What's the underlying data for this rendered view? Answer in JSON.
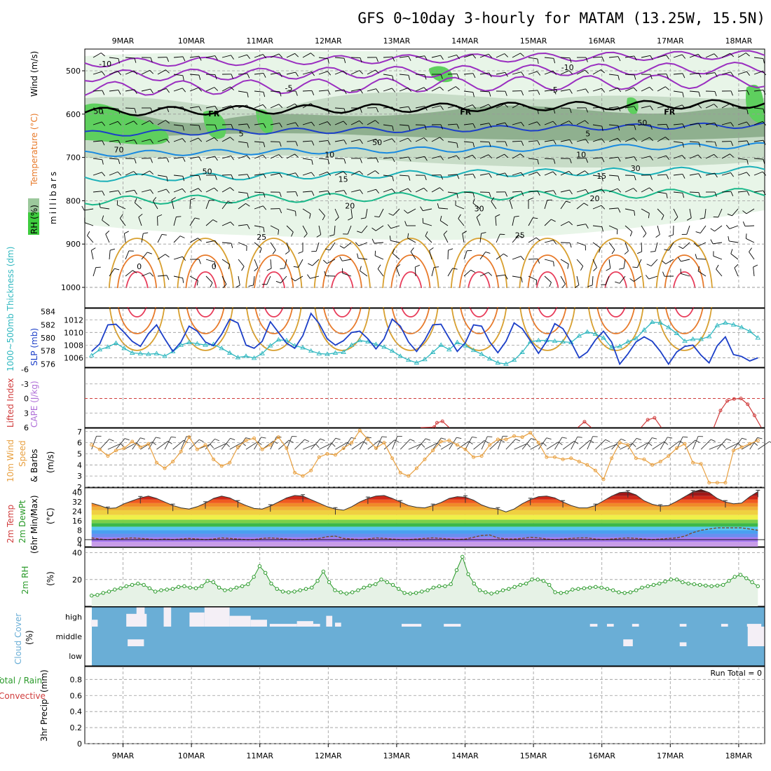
{
  "title": "GFS 0~10day 3-hourly for MATAM (13.25W, 15.5N)",
  "days": [
    "9MAR",
    "10MAR",
    "11MAR",
    "12MAR",
    "13MAR",
    "14MAR",
    "15MAR",
    "16MAR",
    "17MAR",
    "18MAR"
  ],
  "colors": {
    "rh_light": "#e8f5e8",
    "rh_mid": "#c7dcc7",
    "rh_dark": "#8fb08f",
    "rh_green": "#5ecf5e",
    "cloud": "#6aaed6",
    "clear": "#f4eff6",
    "slp": "#1c3fc8",
    "thick": "#30b8c0",
    "wind10": "#e8a040",
    "rh2m": "#2a9a2a",
    "cape": "#d03c3c"
  },
  "chart_data": [
    {
      "name": "upper_air",
      "type": "contour",
      "ylabel": "millibars",
      "yticks": [
        500,
        600,
        700,
        800,
        900,
        1000
      ],
      "side_labels": {
        "wind": "Wind (m/s)",
        "temperature": "Temperature (°C)",
        "rh": "RH (%)"
      },
      "isotherm_labels": [
        {
          "text": "-10",
          "x": 0.03,
          "p": 482
        },
        {
          "text": "-10",
          "x": 0.71,
          "p": 490
        },
        {
          "text": "-5",
          "x": 0.3,
          "p": 538
        },
        {
          "text": "-5",
          "x": 0.69,
          "p": 542
        },
        {
          "text": "FR",
          "x": 0.19,
          "p": 597
        },
        {
          "text": "FR",
          "x": 0.56,
          "p": 593
        },
        {
          "text": "FR",
          "x": 0.86,
          "p": 593
        },
        {
          "text": "5",
          "x": 0.23,
          "p": 643
        },
        {
          "text": "5",
          "x": 0.74,
          "p": 643
        },
        {
          "text": "10",
          "x": 0.36,
          "p": 692
        },
        {
          "text": "10",
          "x": 0.73,
          "p": 692
        },
        {
          "text": "15",
          "x": 0.38,
          "p": 748
        },
        {
          "text": "15",
          "x": 0.76,
          "p": 741
        },
        {
          "text": "20",
          "x": 0.39,
          "p": 810
        },
        {
          "text": "20",
          "x": 0.75,
          "p": 793
        },
        {
          "text": "25",
          "x": 0.26,
          "p": 882
        },
        {
          "text": "25",
          "x": 0.64,
          "p": 878
        },
        {
          "text": "0",
          "x": 0.08,
          "p": 950
        },
        {
          "text": "0",
          "x": 0.19,
          "p": 950
        }
      ],
      "rh_labels": [
        {
          "text": "50",
          "x": 0.02,
          "p": 593
        },
        {
          "text": "70",
          "x": 0.05,
          "p": 682
        },
        {
          "text": "50",
          "x": 0.18,
          "p": 732
        },
        {
          "text": "50",
          "x": 0.43,
          "p": 665
        },
        {
          "text": "50",
          "x": 0.82,
          "p": 620
        },
        {
          "text": "30",
          "x": 0.81,
          "p": 725
        },
        {
          "text": "30",
          "x": 0.58,
          "p": 818
        }
      ]
    },
    {
      "name": "slp_thickness",
      "type": "line",
      "ylabel_left": "1000~500mb Thickness (dm)",
      "ylabel_right": "SLP (mb)",
      "thickness_ticks": [
        576,
        578,
        580,
        582,
        584
      ],
      "slp_ticks": [
        1006,
        1008,
        1010,
        1012
      ],
      "thickness_ylim": [
        575.5,
        584.5
      ],
      "slp_ylim": [
        1004.5,
        1013.8
      ],
      "slp": [
        1007.0,
        1008.2,
        1011.2,
        1011.3,
        1010.0,
        1008.6,
        1007.8,
        1009.8,
        1011.2,
        1009.0,
        1007.0,
        1008.5,
        1011.0,
        1010.2,
        1008.5,
        1007.9,
        1009.7,
        1012.1,
        1011.5,
        1008.0,
        1007.5,
        1008.6,
        1011.7,
        1010.0,
        1008.3,
        1007.5,
        1009.5,
        1013.0,
        1011.4,
        1009.0,
        1008.0,
        1008.7,
        1010.0,
        1010.2,
        1009.0,
        1007.4,
        1009.0,
        1012.1,
        1011.0,
        1008.5,
        1007.0,
        1008.8,
        1011.2,
        1011.3,
        1009.1,
        1007.0,
        1008.4,
        1011.2,
        1011.0,
        1008.5,
        1006.8,
        1008.6,
        1011.5,
        1010.6,
        1008.7,
        1006.7,
        1008.6,
        1011.4,
        1010.6,
        1008.5,
        1006.0,
        1006.9,
        1008.8,
        1010.2,
        1008.5,
        1005.0,
        1006.6,
        1008.5,
        1009.3,
        1008.6,
        1007.0,
        1005.0,
        1006.9,
        1007.8,
        1008.0,
        1006.4,
        1005.2,
        1007.9,
        1009.3,
        1006.5,
        1006.2,
        1005.5,
        1006.0
      ],
      "thickness": [
        577.3,
        578.2,
        578.6,
        579.2,
        578.4,
        577.7,
        577.6,
        577.5,
        577.6,
        577.2,
        577.9,
        578.9,
        579.3,
        579.1,
        578.9,
        579.0,
        578.4,
        577.7,
        577.0,
        577.2,
        576.9,
        577.6,
        578.8,
        579.7,
        579.6,
        578.8,
        578.5,
        578.0,
        577.6,
        577.5,
        577.7,
        577.8,
        578.9,
        579.6,
        579.4,
        579.0,
        578.6,
        578.0,
        577.2,
        576.6,
        576.2,
        576.7,
        577.8,
        578.9,
        578.2,
        579.3,
        578.8,
        578.1,
        577.5,
        576.8,
        576.2,
        576.0,
        576.6,
        577.8,
        579.4,
        579.6,
        579.6,
        579.5,
        579.4,
        579.3,
        580.3,
        580.9,
        580.6,
        580.0,
        578.5,
        578.7,
        579.4,
        579.9,
        581.2,
        582.4,
        582.3,
        581.6,
        580.7,
        579.5,
        579.8,
        579.8,
        580.2,
        581.9,
        582.3,
        582.0,
        581.6,
        581.0,
        580.0
      ]
    },
    {
      "name": "cape_li",
      "type": "line",
      "ylabel_left": "Lifted Index",
      "ylabel_right": "CAPE (J/kg)",
      "li_ticks": [
        6,
        3,
        0,
        -3,
        -6
      ],
      "li_ylim": [
        6,
        -6
      ],
      "lifted_index": [
        {
          "x": 0.494,
          "y": 6.0
        },
        {
          "x": 0.514,
          "y": 5.9
        },
        {
          "x": 0.518,
          "y": 5.0
        },
        {
          "x": 0.526,
          "y": 4.7
        },
        {
          "x": 0.536,
          "y": 6.0
        },
        {
          "x": 0.725,
          "y": 6.0
        },
        {
          "x": 0.735,
          "y": 4.8
        },
        {
          "x": 0.745,
          "y": 6.0
        },
        {
          "x": 0.818,
          "y": 6.0
        },
        {
          "x": 0.828,
          "y": 4.4
        },
        {
          "x": 0.838,
          "y": 4.0
        },
        {
          "x": 0.848,
          "y": 6.0
        },
        {
          "x": 0.925,
          "y": 6.0
        },
        {
          "x": 0.935,
          "y": 2.5
        },
        {
          "x": 0.945,
          "y": 0.5
        },
        {
          "x": 0.955,
          "y": 0.1
        },
        {
          "x": 0.965,
          "y": 0.0
        },
        {
          "x": 0.975,
          "y": 1.2
        },
        {
          "x": 0.985,
          "y": 3.5
        },
        {
          "x": 0.995,
          "y": 6.0
        }
      ]
    },
    {
      "name": "wind10m",
      "type": "line",
      "ylabel": "10m Wind Speed & Barbs (m/s)",
      "yticks": [
        2,
        3,
        4,
        5,
        6,
        7
      ],
      "ylim": [
        2,
        7.3
      ],
      "speed": [
        5.8,
        5.4,
        4.8,
        5.3,
        5.5,
        6.1,
        5.6,
        5.9,
        4.2,
        3.7,
        4.3,
        5.2,
        6.5,
        5.4,
        5.8,
        4.5,
        3.9,
        4.2,
        5.6,
        6.2,
        6.4,
        5.4,
        5.8,
        6.5,
        5.5,
        3.3,
        3.0,
        3.5,
        4.7,
        5.0,
        4.9,
        5.5,
        6.0,
        7.1,
        6.3,
        5.5,
        6.0,
        4.6,
        3.3,
        3.0,
        3.7,
        4.5,
        5.3,
        6.1,
        6.2,
        5.8,
        5.4,
        4.7,
        4.8,
        5.8,
        6.3,
        6.3,
        6.6,
        6.5,
        6.9,
        6.0,
        4.7,
        4.7,
        4.5,
        4.6,
        4.3,
        4.0,
        3.5,
        2.7,
        4.6,
        6.0,
        5.8,
        4.6,
        4.5,
        4.0,
        4.3,
        4.8,
        5.5,
        5.9,
        4.2,
        4.1,
        2.4,
        2.4,
        2.4,
        5.3,
        5.6,
        5.9,
        6.2
      ]
    },
    {
      "name": "temp2m",
      "type": "area",
      "ylabel": "2m Temp 2m DewPt (6hr Min/Max) (°C)",
      "yticks": [
        -4,
        0,
        8,
        16,
        24,
        32,
        40
      ],
      "ylim": [
        -6,
        44
      ],
      "temperature": [
        31,
        29,
        26.5,
        27,
        30.5,
        33,
        35.5,
        37,
        35,
        32,
        29,
        27,
        26,
        28,
        31,
        35,
        37,
        35.5,
        32,
        29,
        26.5,
        26,
        28.5,
        32,
        35.5,
        37.5,
        37,
        34,
        31,
        28,
        26,
        25,
        28,
        32,
        35,
        37,
        37.5,
        35,
        32,
        29,
        27.5,
        27,
        29,
        31.5,
        35,
        36.5,
        36,
        33.5,
        29.5,
        27,
        26,
        23.5,
        26,
        30.5,
        34,
        36.5,
        37,
        35.5,
        32,
        29,
        27,
        27,
        29,
        33,
        37,
        40,
        40.5,
        38,
        33,
        30,
        28.5,
        29,
        32.5,
        36.5,
        40.5,
        42.5,
        40,
        35,
        32,
        30.5,
        31,
        36.5,
        40.8
      ],
      "dewpoint": [
        1.5,
        0.5,
        0,
        0.5,
        1,
        1.5,
        1,
        0.5,
        0,
        0.5,
        0,
        0.5,
        1,
        0.5,
        0,
        0.5,
        1.5,
        1,
        0.5,
        0,
        0,
        1,
        1.5,
        1,
        0.5,
        0,
        0,
        0.5,
        1,
        2.5,
        3,
        1,
        0.5,
        0,
        0.5,
        1.5,
        1,
        0.5,
        0,
        0,
        0.5,
        1,
        1.5,
        1,
        0.5,
        0,
        0.5,
        2,
        3.5,
        4,
        1.5,
        0.5,
        0.5,
        1,
        2,
        1.5,
        0.5,
        0,
        0.5,
        1,
        1.5,
        1.5,
        0.5,
        0,
        0.5,
        1,
        1.5,
        1,
        0.5,
        0,
        0.5,
        1,
        1.5,
        3,
        6,
        8,
        9,
        10,
        10,
        10,
        10,
        9,
        8
      ]
    },
    {
      "name": "rh2m",
      "type": "area",
      "ylabel": "2m RH (%)",
      "yticks": [
        20,
        40
      ],
      "ylim": [
        0,
        44
      ],
      "values": [
        8,
        8.5,
        10,
        11,
        12.5,
        13.5,
        15,
        16,
        17,
        16,
        13.5,
        11,
        12,
        12.5,
        13,
        14.5,
        15,
        14,
        13.5,
        15,
        19,
        18,
        14,
        12,
        12.5,
        14,
        15,
        16.5,
        22,
        30,
        25,
        17,
        13,
        11,
        10.5,
        11,
        12,
        13,
        14,
        19,
        26,
        18,
        12,
        10.5,
        9.5,
        10.5,
        12,
        14,
        15.5,
        16.5,
        20,
        18,
        16,
        13,
        10,
        9.5,
        10,
        11,
        12,
        14,
        15,
        15,
        16.5,
        27,
        37,
        24,
        17,
        12,
        10.5,
        9.5,
        10.5,
        12,
        13,
        14.5,
        16,
        17,
        20,
        20,
        19,
        16,
        10.5,
        10,
        10.5,
        12.5,
        13,
        13.5,
        14,
        14.5,
        14,
        13,
        12,
        10.5,
        10,
        10.5,
        12,
        14,
        15,
        16,
        17,
        18.5,
        20,
        20,
        18,
        17,
        16.5,
        16,
        15.5,
        15,
        15.5,
        16,
        19,
        22,
        23.5,
        21,
        18,
        15
      ]
    },
    {
      "name": "cloud_cover",
      "type": "heatmap",
      "ylabel": "Cloud Cover (%)",
      "levels": [
        "high",
        "middle",
        "low"
      ],
      "clear_segments": [
        {
          "x0": 0.009,
          "x1": 0.019,
          "level": "high",
          "frac": 0.35
        },
        {
          "x0": 0.061,
          "x1": 0.091,
          "level": "high",
          "frac": 0.65
        },
        {
          "x0": 0.076,
          "x1": 0.088,
          "level": "high",
          "frac": 1.0
        },
        {
          "x0": 0.116,
          "x1": 0.127,
          "level": "high",
          "frac": 1.0
        },
        {
          "x0": 0.154,
          "x1": 0.176,
          "level": "high",
          "frac": 0.72
        },
        {
          "x0": 0.176,
          "x1": 0.213,
          "level": "high",
          "frac": 1.0
        },
        {
          "x0": 0.213,
          "x1": 0.244,
          "level": "high",
          "frac": 0.55
        },
        {
          "x0": 0.244,
          "x1": 0.268,
          "level": "high",
          "frac": 0.35
        },
        {
          "x0": 0.272,
          "x1": 0.312,
          "level": "high",
          "frac": 0.14
        },
        {
          "x0": 0.312,
          "x1": 0.336,
          "level": "high",
          "frac": 0.28
        },
        {
          "x0": 0.336,
          "x1": 0.346,
          "level": "high",
          "frac": 0.14
        },
        {
          "x0": 0.355,
          "x1": 0.364,
          "level": "high",
          "frac": 0.55
        },
        {
          "x0": 0.368,
          "x1": 0.377,
          "level": "high",
          "frac": 0.2
        },
        {
          "x0": 0.466,
          "x1": 0.495,
          "level": "high",
          "frac": 0.14
        },
        {
          "x0": 0.528,
          "x1": 0.553,
          "level": "high",
          "frac": 0.14
        },
        {
          "x0": 0.743,
          "x1": 0.754,
          "level": "high",
          "frac": 0.14
        },
        {
          "x0": 0.768,
          "x1": 0.778,
          "level": "high",
          "frac": 0.14
        },
        {
          "x0": 0.805,
          "x1": 0.815,
          "level": "high",
          "frac": 0.14
        },
        {
          "x0": 0.875,
          "x1": 0.885,
          "level": "high",
          "frac": 0.14
        },
        {
          "x0": 0.936,
          "x1": 0.946,
          "level": "high",
          "frac": 0.14
        },
        {
          "x0": 0.974,
          "x1": 0.995,
          "level": "high",
          "frac": 0.14
        },
        {
          "x0": 0.063,
          "x1": 0.087,
          "level": "middle",
          "frac": 0.35
        },
        {
          "x0": 0.792,
          "x1": 0.806,
          "level": "middle",
          "frac": 0.35
        },
        {
          "x0": 0.875,
          "x1": 0.885,
          "level": "middle",
          "frac": 0.2
        },
        {
          "x0": 0.975,
          "x1": 1.0,
          "level": "middle",
          "frac": 1.0
        }
      ]
    },
    {
      "name": "precip",
      "type": "bar",
      "ylabel": "3hr Precip (mm)",
      "side_labels": {
        "total": "Total / Rain",
        "convective": "Convective"
      },
      "yticks": [
        0,
        0.2,
        0.4,
        0.6,
        0.8
      ],
      "ylim": [
        0,
        0.96
      ],
      "annotation": "Run Total = 0",
      "values": []
    }
  ],
  "labels": {
    "rh_box": "RH (%)",
    "wind_label": "Wind (m/s)",
    "temp_label": "Temperature (°C)",
    "millibars": "millibars",
    "thick_label": "1000~500mb Thickness (dm)",
    "slp_label": "SLP (mb)",
    "li_label": "Lifted Index",
    "cape_label": "CAPE (J/kg)",
    "wind10_a": "10m Wind",
    "wind10_b": "Speed",
    "wind10_c": "& Barbs",
    "wind10_unit": "(m/s)",
    "t2m_a": "2m Temp",
    "t2m_b": "2m DewPt",
    "t2m_c": "(6hr Min/Max)",
    "t2m_unit": "(°C)",
    "rh2m_a": "2m RH",
    "rh2m_unit": "(%)",
    "cloud_a": "Cloud Cover",
    "cloud_unit": "(%)",
    "precip_a": "Total / Rain",
    "precip_b": "Convective",
    "precip_c": "3hr Precip",
    "precip_unit": "(mm)"
  }
}
